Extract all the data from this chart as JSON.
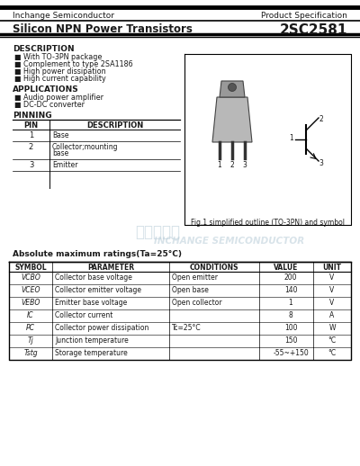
{
  "header_company": "Inchange Semiconductor",
  "header_right": "Product Specification",
  "title_left": "Silicon NPN Power Transistors",
  "title_right": "2SC2581",
  "description_title": "DESCRIPTION",
  "description_items": [
    "With TO-3PN package",
    "Complement to type 2SA1186",
    "High power dissipation",
    "High current capability"
  ],
  "applications_title": "APPLICATIONS",
  "applications_items": [
    "Audio power amplifier",
    "DC-DC converter"
  ],
  "pinning_title": "PINNING",
  "pin_headers": [
    "PIN",
    "DESCRIPTION"
  ],
  "pin_rows": [
    [
      "1",
      "Base"
    ],
    [
      "2",
      "Collector;mounting\nbase"
    ],
    [
      "3",
      "Emitter"
    ]
  ],
  "fig_caption": "Fig.1 simplified outline (TO-3PN) and symbol",
  "abs_max_title": "Absolute maximum ratings(Ta=25°C)",
  "table_headers": [
    "SYMBOL",
    "PARAMETER",
    "CONDITIONS",
    "VALUE",
    "UNIT"
  ],
  "symbols": [
    "VCBO",
    "VCEO",
    "VEBO",
    "IC",
    "PC",
    "Tj",
    "Tstg"
  ],
  "parameters": [
    "Collector base voltage",
    "Collector emitter voltage",
    "Emitter base voltage",
    "Collector current",
    "Collector power dissipation",
    "Junction temperature",
    "Storage temperature"
  ],
  "conditions": [
    "Open emitter",
    "Open base",
    "Open collector",
    "",
    "Tc=25°C",
    "",
    ""
  ],
  "values": [
    "200",
    "140",
    "1",
    "8",
    "100",
    "150",
    "-55~+150"
  ],
  "units": [
    "V",
    "V",
    "V",
    "A",
    "W",
    "°C",
    "°C"
  ],
  "watermark_text": "INCHANGE SEMICONDUCTOR",
  "watermark_cn": "十达半导体",
  "bg_color": "#ffffff",
  "text_color": "#1a1a1a",
  "line_color": "#000000"
}
